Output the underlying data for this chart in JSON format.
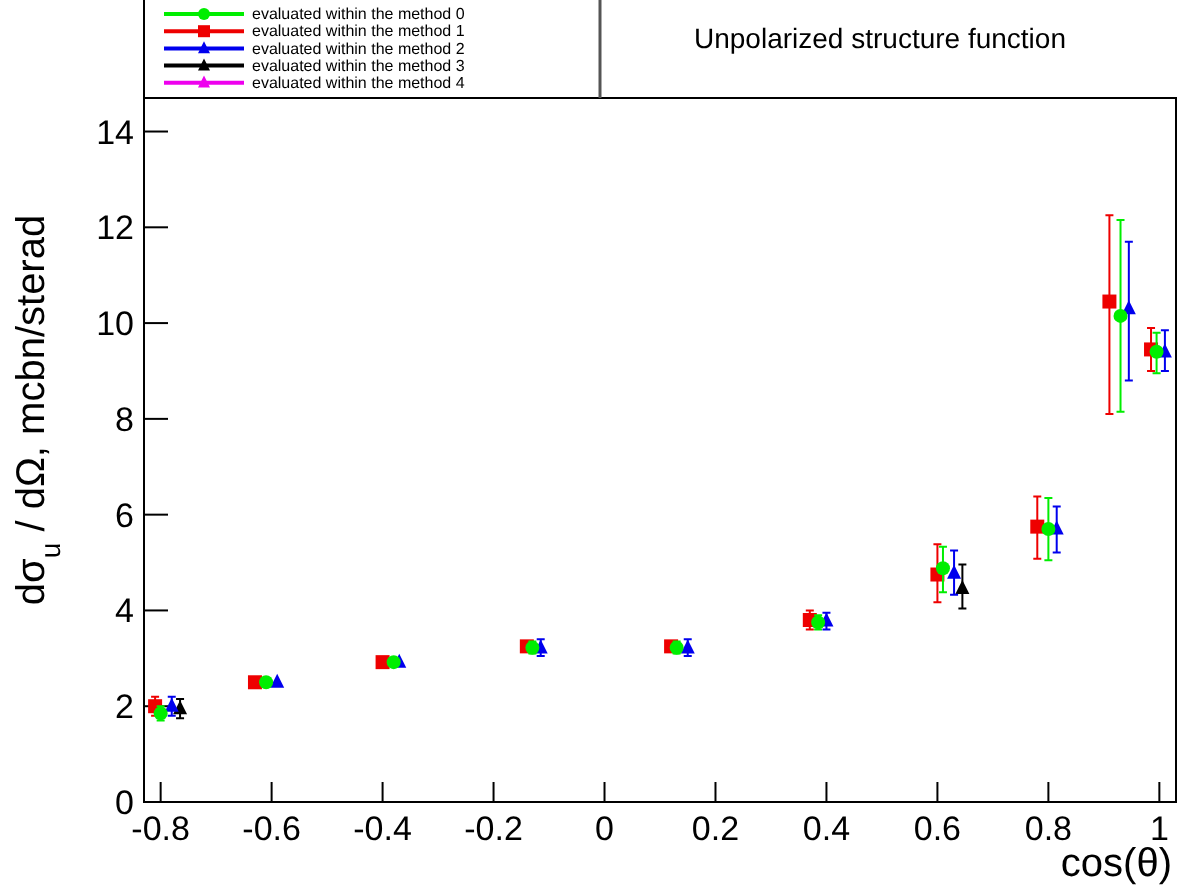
{
  "chart_data": {
    "type": "scatter",
    "title": "Unpolarized structure function",
    "xlabel": "cos(θ)",
    "ylabel": "dσ$_{u}$ / dΩ, mcbn/sterad",
    "xlim": [
      -0.83,
      1.03
    ],
    "ylim": [
      0,
      14.7
    ],
    "xticks": [
      -0.8,
      -0.6,
      -0.4,
      -0.2,
      0,
      0.2,
      0.4,
      0.6,
      0.8,
      1
    ],
    "yticks": [
      0,
      2,
      4,
      6,
      8,
      10,
      12,
      14
    ],
    "grid": false,
    "legend": "top left",
    "series": [
      {
        "name": "evaluated within the method 0",
        "color": "#00ee00",
        "marker": "circle",
        "x": [
          -0.8,
          -0.61,
          -0.38,
          -0.13,
          0.13,
          0.385,
          0.61,
          0.8,
          0.93,
          0.995
        ],
        "values": [
          1.85,
          2.5,
          2.92,
          3.22,
          3.22,
          3.75,
          4.88,
          5.7,
          10.15,
          9.4
        ],
        "errors": [
          [
            1.7,
            2.0
          ],
          null,
          null,
          [
            3.1,
            3.35
          ],
          [
            3.1,
            3.35
          ],
          [
            3.6,
            3.9
          ],
          [
            4.38,
            5.33
          ],
          [
            5.05,
            6.35
          ],
          [
            8.15,
            12.15
          ],
          [
            8.95,
            9.8
          ]
        ]
      },
      {
        "name": "evaluated within the method 1",
        "color": "#ee0000",
        "marker": "square",
        "x": [
          -0.81,
          -0.63,
          -0.4,
          -0.14,
          0.12,
          0.37,
          0.6,
          0.78,
          0.91,
          0.985
        ],
        "values": [
          2.0,
          2.5,
          2.92,
          3.25,
          3.25,
          3.8,
          4.75,
          5.75,
          10.45,
          9.45
        ],
        "errors": [
          [
            1.8,
            2.2
          ],
          null,
          null,
          null,
          null,
          [
            3.6,
            4.0
          ],
          [
            4.17,
            5.38
          ],
          [
            5.08,
            6.38
          ],
          [
            8.1,
            12.25
          ],
          [
            9.0,
            9.9
          ]
        ]
      },
      {
        "name": "evaluated within the method 2",
        "color": "#0000ee",
        "marker": "triangle",
        "x": [
          -0.78,
          -0.59,
          -0.37,
          -0.115,
          0.15,
          0.4,
          0.63,
          0.815,
          0.945,
          1.01
        ],
        "values": [
          2.0,
          2.5,
          2.92,
          3.22,
          3.22,
          3.78,
          4.78,
          5.7,
          10.3,
          9.4
        ],
        "errors": [
          [
            1.8,
            2.2
          ],
          null,
          null,
          [
            3.05,
            3.4
          ],
          [
            3.05,
            3.4
          ],
          [
            3.6,
            3.95
          ],
          [
            4.33,
            5.25
          ],
          [
            5.21,
            6.17
          ],
          [
            8.8,
            11.7
          ],
          [
            9.0,
            9.85
          ]
        ]
      },
      {
        "name": "evaluated within the method 3",
        "color": "#000000",
        "marker": "triangle",
        "x": [
          -0.765,
          0.645
        ],
        "values": [
          1.95,
          4.46
        ],
        "errors": [
          [
            1.75,
            2.15
          ],
          [
            4.04,
            4.96
          ]
        ]
      },
      {
        "name": "evaluated within the method 4",
        "color": "#ee00ee",
        "marker": "triangle"
      }
    ]
  }
}
